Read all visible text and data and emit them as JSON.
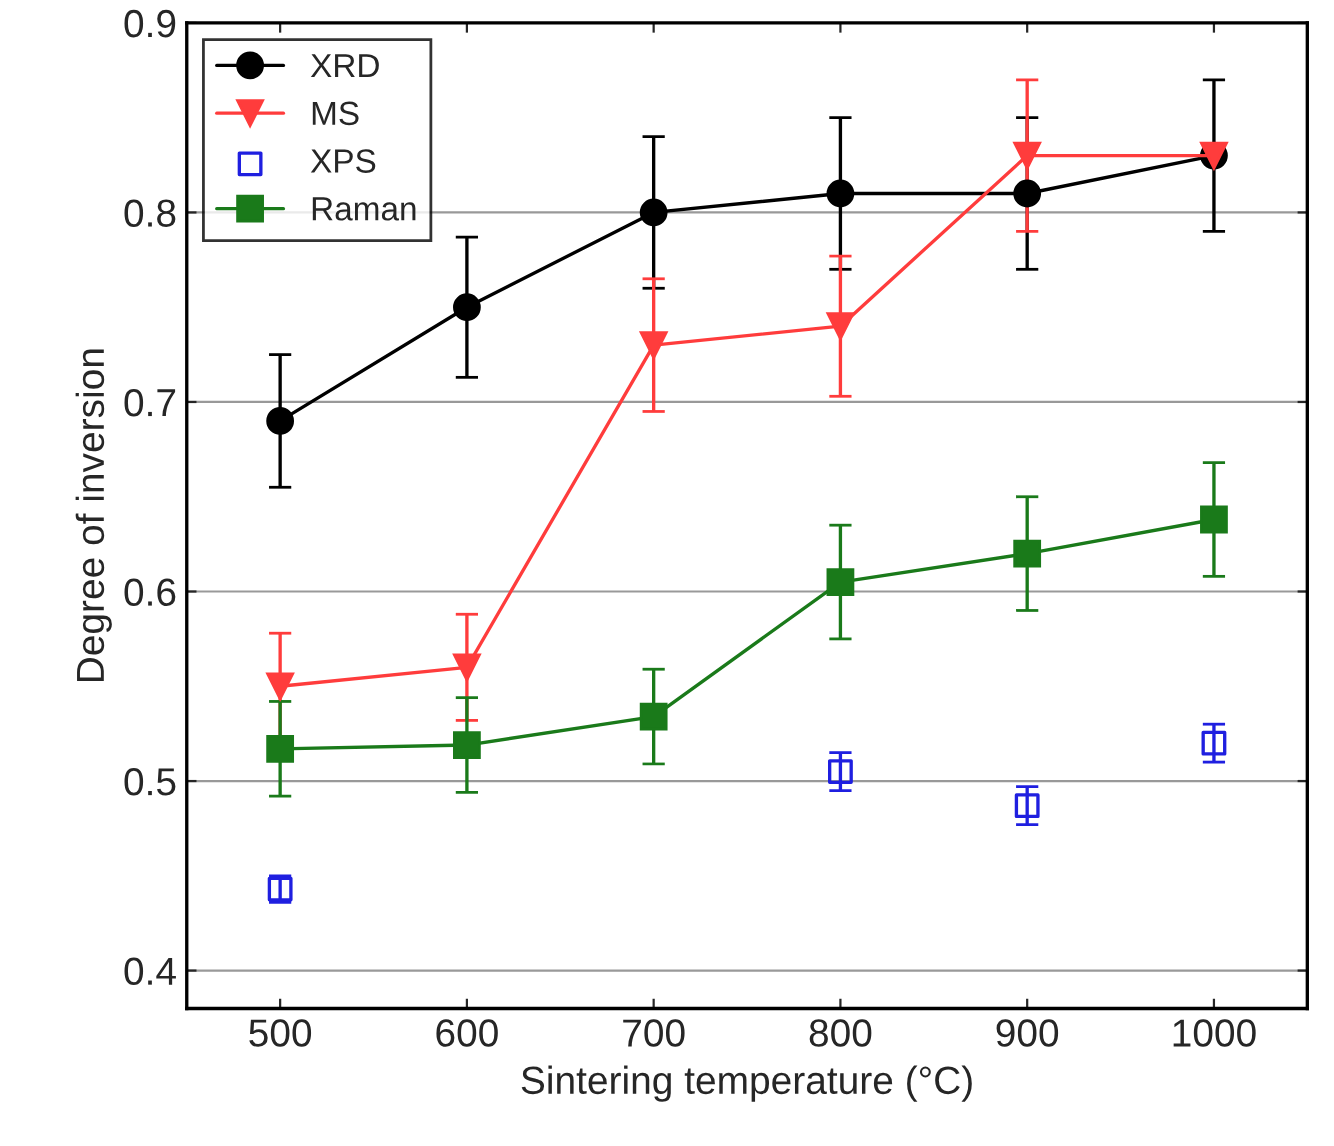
{
  "chart_data": {
    "type": "line",
    "xlabel": "Sintering temperature (°C)",
    "ylabel": "Degree of inversion",
    "x": [
      500,
      600,
      700,
      800,
      900,
      1000
    ],
    "series": [
      {
        "name": "XRD",
        "color": "#000000",
        "marker": "circle",
        "values": [
          0.69,
          0.75,
          0.8,
          0.81,
          0.81,
          0.83
        ],
        "errors": [
          0.035,
          0.037,
          0.04,
          0.04,
          0.04,
          0.04
        ]
      },
      {
        "name": "MS",
        "color": "#ff3c3c",
        "marker": "triangle",
        "values": [
          0.55,
          0.56,
          0.73,
          0.74,
          0.83,
          0.83
        ],
        "errors": [
          0.028,
          0.028,
          0.035,
          0.037,
          0.04,
          null
        ]
      },
      {
        "name": "XPS",
        "color": "#1f1fe0",
        "type": "scatter",
        "marker": "square",
        "values": [
          0.443,
          null,
          null,
          0.505,
          0.487,
          0.52
        ],
        "errors": [
          0.007,
          null,
          null,
          0.01,
          0.01,
          0.01
        ]
      },
      {
        "name": "Raman",
        "color": "#1a7a1a",
        "marker": "square",
        "values": [
          0.517,
          0.519,
          0.534,
          0.605,
          0.62,
          0.638
        ],
        "errors": [
          0.025,
          0.025,
          0.025,
          0.03,
          0.03,
          0.03
        ]
      }
    ],
    "xlim": [
      450,
      1050
    ],
    "xticks": [
      500,
      600,
      700,
      800,
      900,
      1000
    ],
    "ylim": [
      0.38,
      0.9
    ],
    "yticks": [
      0.4,
      0.5,
      0.6,
      0.7,
      0.8,
      0.9
    ],
    "grid": "y",
    "legend": "top left"
  }
}
